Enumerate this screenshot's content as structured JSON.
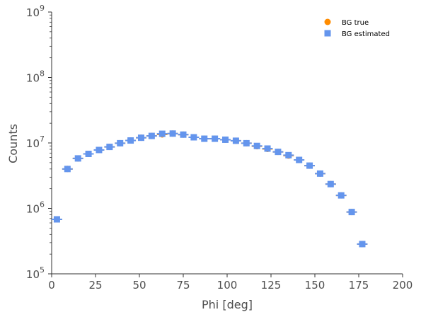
{
  "chart_data": {
    "type": "scatter",
    "xlabel": "Phi [deg]",
    "ylabel": "Counts",
    "xlim": [
      0,
      200
    ],
    "ylim": [
      100000,
      1000000000
    ],
    "yscale": "log",
    "x_ticks": [
      "0",
      "25",
      "50",
      "75",
      "100",
      "125",
      "150",
      "175",
      "200"
    ],
    "y_ticks": [
      {
        "base": "10",
        "exp": "5"
      },
      {
        "base": "10",
        "exp": "6"
      },
      {
        "base": "10",
        "exp": "7"
      },
      {
        "base": "10",
        "exp": "8"
      },
      {
        "base": "10",
        "exp": "9"
      }
    ],
    "legend_position": "top-right",
    "grid": false,
    "x": [
      3,
      9,
      15,
      21,
      27,
      33,
      39,
      45,
      51,
      57,
      63,
      69,
      75,
      81,
      87,
      93,
      99,
      105,
      111,
      117,
      123,
      129,
      135,
      141,
      147,
      153,
      159,
      165,
      171,
      177
    ],
    "bin_half_width": 3,
    "series": [
      {
        "name": "BG true",
        "marker": "circle",
        "color": "#ff8c00",
        "values": [
          680000,
          4000000,
          5800000,
          6800000,
          7800000,
          8700000,
          9900000,
          10900000,
          12000000,
          12800000,
          13500000,
          13900000,
          13400000,
          12200000,
          11600000,
          11600000,
          11200000,
          10800000,
          9900000,
          8900000,
          8100000,
          7300000,
          6400000,
          5500000,
          4500000,
          3400000,
          2350000,
          1580000,
          880000,
          285000
        ]
      },
      {
        "name": "BG estimated",
        "marker": "square",
        "color": "#6495ed",
        "values": [
          680000,
          4000000,
          5800000,
          6800000,
          7800000,
          8700000,
          9900000,
          10900000,
          12000000,
          12800000,
          13800000,
          13900000,
          13400000,
          12200000,
          11600000,
          11600000,
          11200000,
          10800000,
          9900000,
          9000000,
          8200000,
          7300000,
          6500000,
          5500000,
          4500000,
          3400000,
          2350000,
          1580000,
          880000,
          285000
        ]
      }
    ]
  }
}
